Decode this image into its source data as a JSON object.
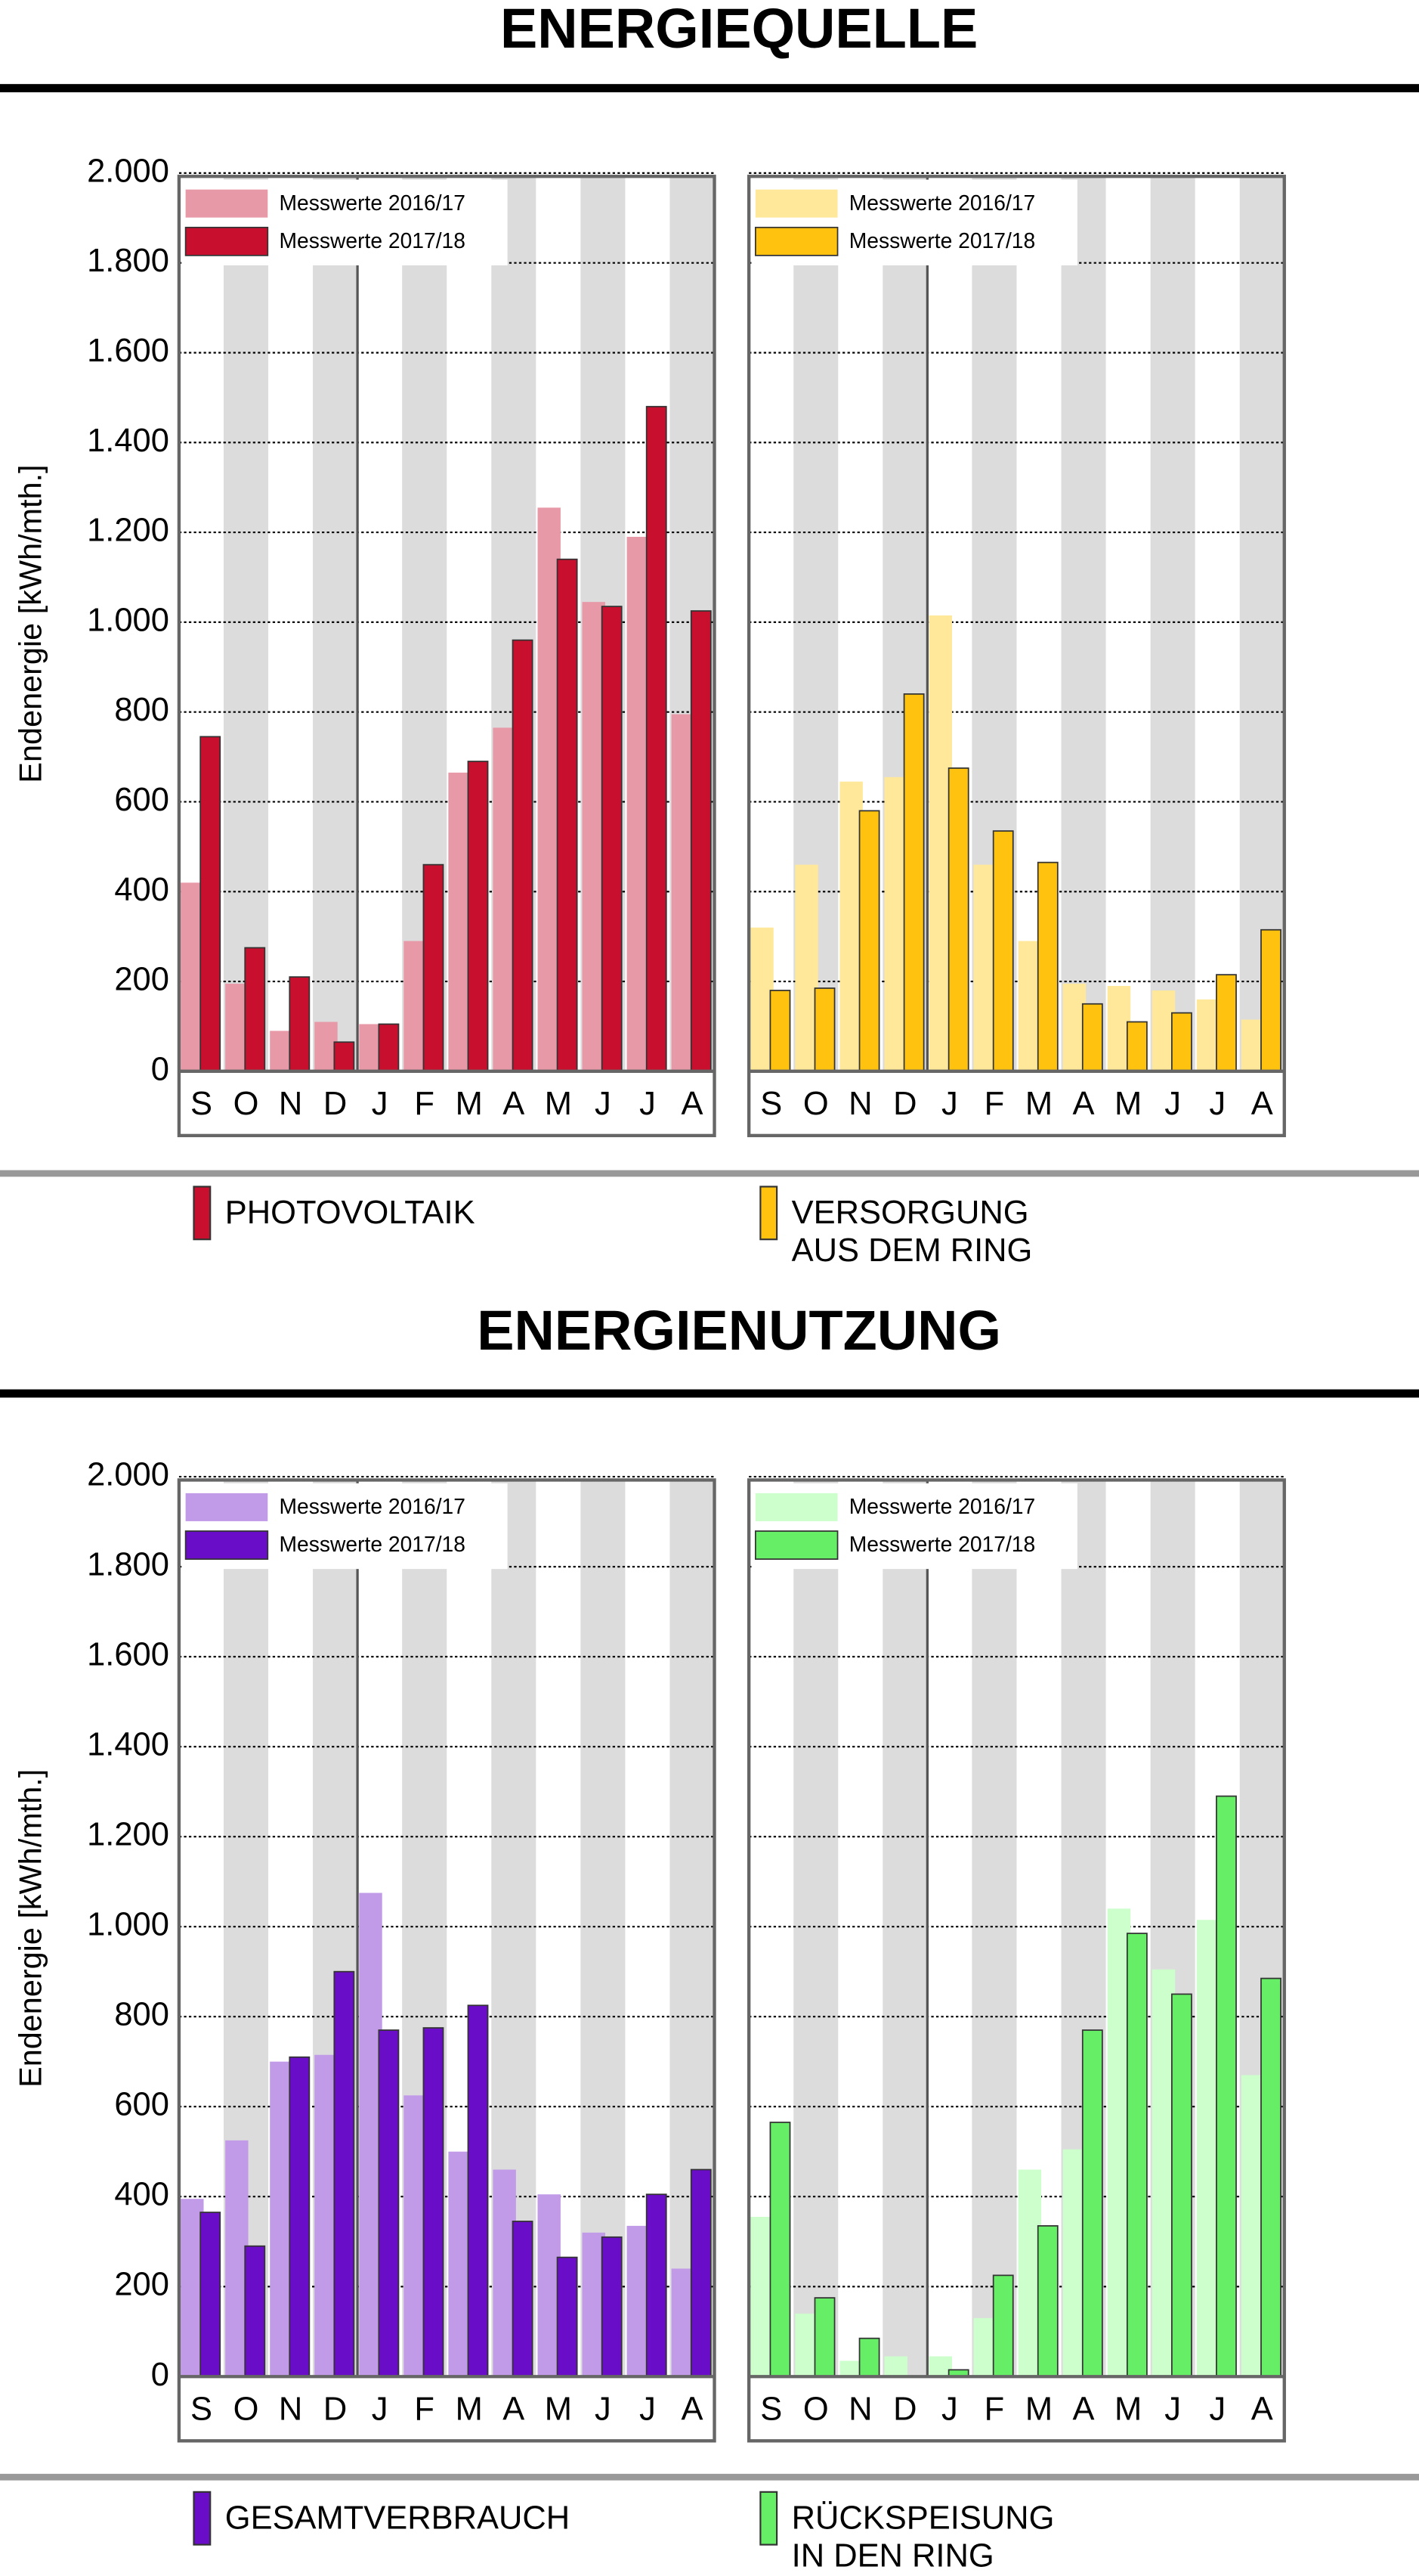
{
  "sections": [
    {
      "title": "ENERGIEQUELLE",
      "legend": [
        {
          "lines": [
            "PHOTOVOLTAIK"
          ],
          "color": "#c8102e"
        },
        {
          "lines": [
            "VERSORGUNG",
            "AUS DEM RING"
          ],
          "color": "#ffc20e"
        }
      ]
    },
    {
      "title": "ENERGIENUTZUNG",
      "legend": [
        {
          "lines": [
            "GESAMTVERBRAUCH"
          ],
          "color": "#6a0dc8"
        },
        {
          "lines": [
            "RÜCKSPEISUNG",
            "IN DEN RING"
          ],
          "color": "#66ee66"
        }
      ]
    }
  ],
  "chart_data": [
    {
      "type": "bar",
      "ylabel": "Endenergie [kWh/mth.]",
      "categories": [
        "S",
        "O",
        "N",
        "D",
        "J",
        "F",
        "M",
        "A",
        "M",
        "J",
        "J",
        "A"
      ],
      "ylim": [
        0,
        2000
      ],
      "yticks": [
        0,
        200,
        400,
        600,
        800,
        {
          "value": 1000,
          "label": "1.000"
        },
        {
          "value": 1200,
          "label": "1.200"
        },
        {
          "value": 1400,
          "label": "1.400"
        },
        {
          "value": 1600,
          "label": "1.600"
        },
        {
          "value": 1800,
          "label": "1.800"
        },
        {
          "value": 2000,
          "label": "2.000"
        }
      ],
      "grid": true,
      "series": [
        {
          "name": "Messwerte 2016/17",
          "color": "#e899a8",
          "values": [
            420,
            195,
            90,
            110,
            105,
            290,
            665,
            765,
            1255,
            1045,
            1190,
            795
          ]
        },
        {
          "name": "Messwerte 2017/18",
          "color": "#c8102e",
          "values": [
            745,
            275,
            210,
            65,
            105,
            460,
            690,
            960,
            1140,
            1035,
            1480,
            1025
          ]
        }
      ]
    },
    {
      "type": "bar",
      "sharey": true,
      "categories": [
        "S",
        "O",
        "N",
        "D",
        "J",
        "F",
        "M",
        "A",
        "M",
        "J",
        "J",
        "A"
      ],
      "series": [
        {
          "name": "Messwerte 2016/17",
          "color": "#ffe89a",
          "values": [
            320,
            460,
            645,
            655,
            1015,
            460,
            290,
            195,
            190,
            180,
            160,
            115
          ]
        },
        {
          "name": "Messwerte 2017/18",
          "color": "#ffc20e",
          "values": [
            180,
            185,
            580,
            840,
            675,
            535,
            465,
            150,
            110,
            130,
            215,
            315
          ]
        }
      ]
    },
    {
      "type": "bar",
      "ylabel": "Endenergie [kWh/mth.]",
      "categories": [
        "S",
        "O",
        "N",
        "D",
        "J",
        "F",
        "M",
        "A",
        "M",
        "J",
        "J",
        "A"
      ],
      "ylim": [
        0,
        2000
      ],
      "yticks": [
        0,
        200,
        400,
        600,
        800,
        {
          "value": 1000,
          "label": "1.000"
        },
        {
          "value": 1200,
          "label": "1.200"
        },
        {
          "value": 1400,
          "label": "1.400"
        },
        {
          "value": 1600,
          "label": "1.600"
        },
        {
          "value": 1800,
          "label": "1.800"
        },
        {
          "value": 2000,
          "label": "2.000"
        }
      ],
      "grid": true,
      "series": [
        {
          "name": "Messwerte 2016/17",
          "color": "#c29be8",
          "values": [
            395,
            525,
            700,
            715,
            1075,
            625,
            500,
            460,
            405,
            320,
            335,
            240
          ]
        },
        {
          "name": "Messwerte 2017/18",
          "color": "#6a0dc8",
          "values": [
            365,
            290,
            710,
            900,
            770,
            775,
            825,
            345,
            265,
            310,
            405,
            460
          ]
        }
      ]
    },
    {
      "type": "bar",
      "sharey": true,
      "categories": [
        "S",
        "O",
        "N",
        "D",
        "J",
        "F",
        "M",
        "A",
        "M",
        "J",
        "J",
        "A"
      ],
      "series": [
        {
          "name": "Messwerte 2016/17",
          "color": "#ccffcc",
          "values": [
            355,
            140,
            35,
            45,
            45,
            130,
            460,
            505,
            1040,
            905,
            1015,
            670
          ]
        },
        {
          "name": "Messwerte 2017/18",
          "color": "#66ee66",
          "values": [
            565,
            175,
            85,
            null,
            15,
            225,
            335,
            770,
            985,
            850,
            1290,
            885
          ]
        }
      ]
    }
  ]
}
